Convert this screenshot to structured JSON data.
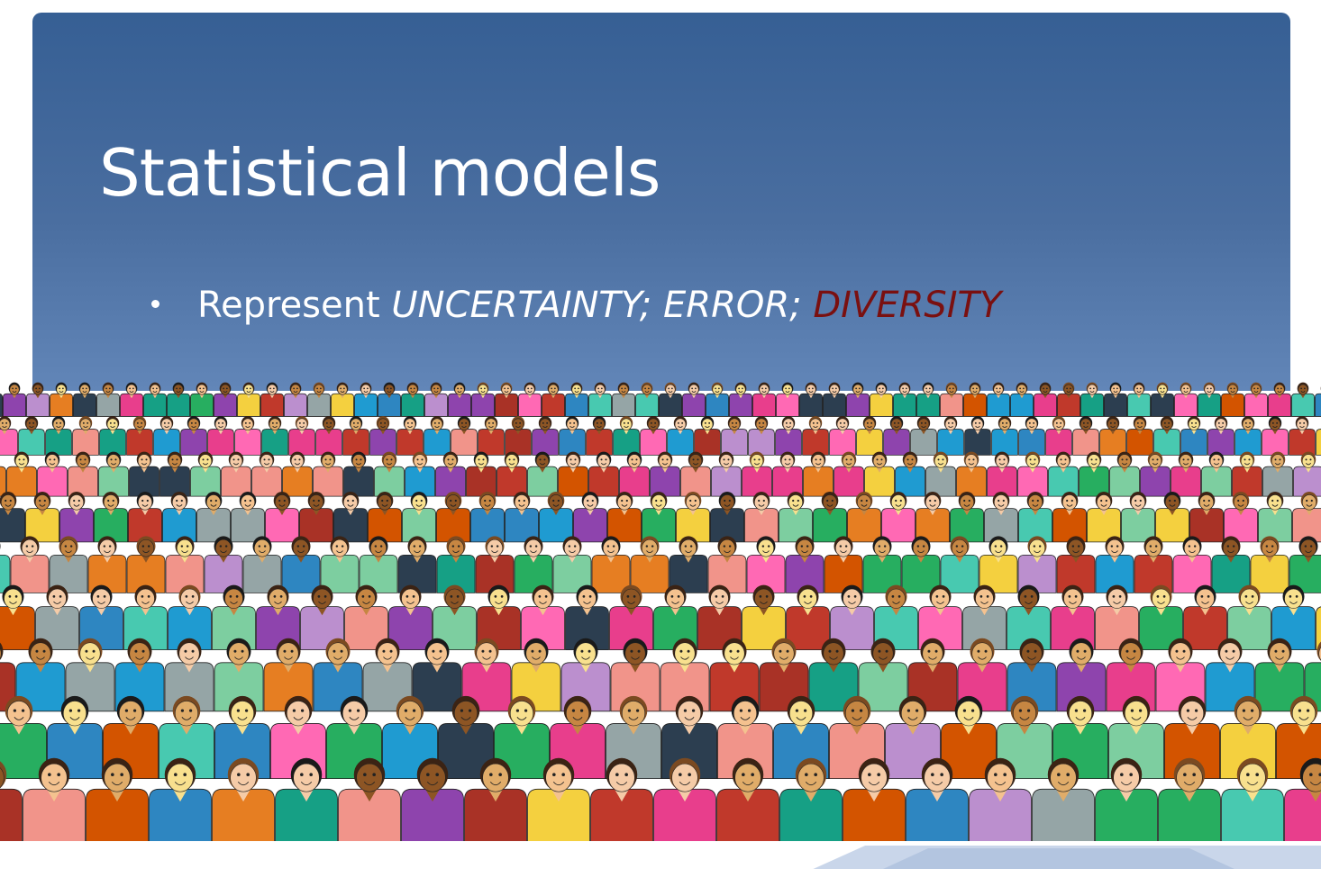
{
  "slide": {
    "title": "Statistical models",
    "bullet": {
      "prefix": "Represent ",
      "term1": "UNCERTAINTY; ",
      "term2": "ERROR; ",
      "term3": "DIVERSITY"
    }
  },
  "colors": {
    "banner_top": "#365f94",
    "banner_bottom": "#6286b8",
    "title_text": "#ffffff",
    "highlight": "#7a1010"
  },
  "illustration": {
    "subject": "crowd-of-diverse-people",
    "palette": [
      "#e83e8c",
      "#1f9bd1",
      "#f4d03f",
      "#27ae60",
      "#8e44ad",
      "#e67e22",
      "#c0392b",
      "#16a085",
      "#2c3e50",
      "#ff69b4",
      "#95a5a6",
      "#d35400",
      "#2e86c1",
      "#f1948a",
      "#7dcea0",
      "#bb8fce",
      "#a93226",
      "#48c9b0"
    ],
    "skin_tones": [
      "#f5cba7",
      "#e0ac69",
      "#c68642",
      "#8d5524",
      "#f8e08e",
      "#f4c28f"
    ]
  }
}
